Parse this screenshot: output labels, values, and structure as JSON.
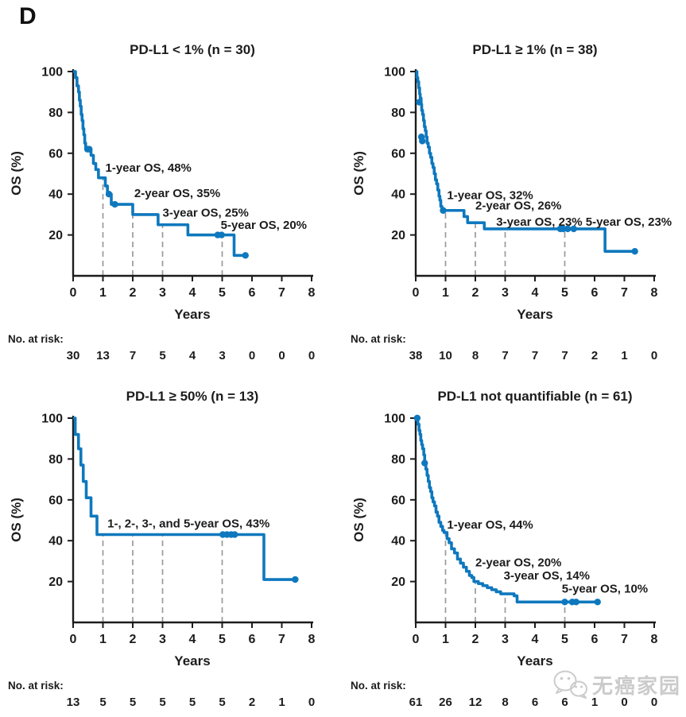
{
  "figure_label": "D",
  "risk_label": "No. at risk:",
  "watermark": {
    "text": "无癌家园",
    "icon": "wechat-chat-bubbles-icon"
  },
  "colors": {
    "curve": "#0E78BE",
    "axis": "#1c1c1c",
    "guide": "#9a9a9a",
    "text": "#1c1c1c",
    "watermark": "#c3c3c3"
  },
  "chart_data": [
    {
      "type": "line",
      "subtype": "kaplan-meier-step",
      "title": "PD-L1 < 1% (n = 30)",
      "xlabel": "Years",
      "ylabel": "OS (%)",
      "xlim": [
        0,
        8
      ],
      "xticks": [
        0,
        1,
        2,
        3,
        4,
        5,
        6,
        7,
        8
      ],
      "ylim": [
        0,
        100
      ],
      "yticks": [
        20,
        40,
        60,
        80,
        100
      ],
      "grid": false,
      "guides": [
        {
          "x": 1,
          "y": 48
        },
        {
          "x": 2,
          "y": 35
        },
        {
          "x": 3,
          "y": 25
        },
        {
          "x": 5,
          "y": 20
        }
      ],
      "steps": [
        [
          0,
          100
        ],
        [
          0.08,
          97
        ],
        [
          0.13,
          93
        ],
        [
          0.18,
          90
        ],
        [
          0.21,
          86
        ],
        [
          0.24,
          83
        ],
        [
          0.27,
          79
        ],
        [
          0.3,
          76
        ],
        [
          0.33,
          72
        ],
        [
          0.36,
          69
        ],
        [
          0.39,
          65
        ],
        [
          0.42,
          62
        ],
        [
          0.6,
          59
        ],
        [
          0.68,
          55
        ],
        [
          0.76,
          52
        ],
        [
          0.85,
          48
        ],
        [
          1.08,
          44
        ],
        [
          1.15,
          40
        ],
        [
          1.28,
          35
        ],
        [
          2.0,
          30
        ],
        [
          2.85,
          25
        ],
        [
          3.85,
          20
        ],
        [
          5.4,
          10
        ]
      ],
      "end_x": 5.8,
      "censors": [
        [
          0.48,
          62
        ],
        [
          0.54,
          62
        ],
        [
          1.2,
          40
        ],
        [
          1.4,
          35
        ],
        [
          4.85,
          20
        ],
        [
          4.98,
          20
        ],
        [
          5.78,
          10
        ]
      ],
      "annotations": [
        {
          "text": "1-year OS, 48%",
          "x": 1.08,
          "y": 51
        },
        {
          "text": "2-year OS, 35%",
          "x": 2.05,
          "y": 38.5
        },
        {
          "text": "3-year OS, 25%",
          "x": 3.0,
          "y": 29
        },
        {
          "text": "5-year OS, 20%",
          "x": 4.95,
          "y": 23
        }
      ],
      "risk": [
        30,
        13,
        7,
        5,
        4,
        3,
        0,
        0,
        0
      ]
    },
    {
      "type": "line",
      "subtype": "kaplan-meier-step",
      "title": "PD-L1 ≥ 1% (n = 38)",
      "xlabel": "Years",
      "ylabel": "OS (%)",
      "xlim": [
        0,
        8
      ],
      "xticks": [
        0,
        1,
        2,
        3,
        4,
        5,
        6,
        7,
        8
      ],
      "ylim": [
        0,
        100
      ],
      "yticks": [
        20,
        40,
        60,
        80,
        100
      ],
      "grid": false,
      "guides": [
        {
          "x": 1,
          "y": 32
        },
        {
          "x": 2,
          "y": 26
        },
        {
          "x": 3,
          "y": 23
        },
        {
          "x": 5,
          "y": 23
        }
      ],
      "steps": [
        [
          0,
          100
        ],
        [
          0.04,
          97
        ],
        [
          0.07,
          95
        ],
        [
          0.1,
          92
        ],
        [
          0.13,
          89
        ],
        [
          0.15,
          87
        ],
        [
          0.18,
          84
        ],
        [
          0.2,
          81
        ],
        [
          0.23,
          79
        ],
        [
          0.26,
          76
        ],
        [
          0.29,
          73
        ],
        [
          0.32,
          71
        ],
        [
          0.35,
          68
        ],
        [
          0.38,
          65
        ],
        [
          0.42,
          63
        ],
        [
          0.46,
          60
        ],
        [
          0.5,
          58
        ],
        [
          0.54,
          55
        ],
        [
          0.58,
          53
        ],
        [
          0.62,
          50
        ],
        [
          0.66,
          47
        ],
        [
          0.7,
          45
        ],
        [
          0.74,
          42
        ],
        [
          0.78,
          39
        ],
        [
          0.81,
          37
        ],
        [
          0.84,
          34
        ],
        [
          0.88,
          32
        ],
        [
          1.62,
          29
        ],
        [
          1.74,
          26
        ],
        [
          2.3,
          23
        ],
        [
          6.35,
          12
        ]
      ],
      "end_x": 7.35,
      "censors": [
        [
          0.12,
          85
        ],
        [
          0.19,
          68
        ],
        [
          0.22,
          66
        ],
        [
          0.92,
          32
        ],
        [
          4.85,
          23
        ],
        [
          4.95,
          23
        ],
        [
          5.1,
          23
        ],
        [
          5.3,
          23
        ],
        [
          7.35,
          12
        ]
      ],
      "annotations": [
        {
          "text": "1-year OS, 32%",
          "x": 1.05,
          "y": 37.5
        },
        {
          "text": "2-year OS, 26%",
          "x": 2.0,
          "y": 32.5
        },
        {
          "text": "3-year OS, 23%",
          "x": 2.7,
          "y": 24.5
        },
        {
          "text": "5-year OS, 23%",
          "x": 5.7,
          "y": 24.5
        }
      ],
      "risk": [
        38,
        10,
        8,
        7,
        7,
        7,
        2,
        1,
        0
      ]
    },
    {
      "type": "line",
      "subtype": "kaplan-meier-step",
      "title": "PD-L1 ≥ 50% (n = 13)",
      "xlabel": "Years",
      "ylabel": "OS (%)",
      "xlim": [
        0,
        8
      ],
      "xticks": [
        0,
        1,
        2,
        3,
        4,
        5,
        6,
        7,
        8
      ],
      "ylim": [
        0,
        100
      ],
      "yticks": [
        20,
        40,
        60,
        80,
        100
      ],
      "grid": false,
      "guides": [
        {
          "x": 1,
          "y": 43
        },
        {
          "x": 2,
          "y": 43
        },
        {
          "x": 3,
          "y": 43
        },
        {
          "x": 5,
          "y": 43
        }
      ],
      "steps": [
        [
          0,
          100
        ],
        [
          0.07,
          92
        ],
        [
          0.18,
          85
        ],
        [
          0.26,
          77
        ],
        [
          0.34,
          69
        ],
        [
          0.44,
          61
        ],
        [
          0.6,
          52
        ],
        [
          0.8,
          43
        ],
        [
          6.4,
          21
        ]
      ],
      "end_x": 7.45,
      "censors": [
        [
          5.02,
          43
        ],
        [
          5.16,
          43
        ],
        [
          5.3,
          43
        ],
        [
          5.42,
          43
        ],
        [
          7.45,
          21
        ]
      ],
      "annotations": [
        {
          "text": "1-, 2-, 3-, and 5-year OS, 43%",
          "x": 1.15,
          "y": 46.5
        }
      ],
      "risk": [
        13,
        5,
        5,
        5,
        5,
        5,
        2,
        1,
        0
      ]
    },
    {
      "type": "line",
      "subtype": "kaplan-meier-step",
      "title": "PD-L1 not quantifiable (n = 61)",
      "xlabel": "Years",
      "ylabel": "OS (%)",
      "xlim": [
        0,
        8
      ],
      "xticks": [
        0,
        1,
        2,
        3,
        4,
        5,
        6,
        7,
        8
      ],
      "ylim": [
        0,
        100
      ],
      "yticks": [
        20,
        40,
        60,
        80,
        100
      ],
      "grid": false,
      "guides": [
        {
          "x": 1,
          "y": 44
        },
        {
          "x": 2,
          "y": 20
        },
        {
          "x": 3,
          "y": 14
        },
        {
          "x": 5,
          "y": 10
        }
      ],
      "steps": [
        [
          0,
          100
        ],
        [
          0.07,
          97
        ],
        [
          0.11,
          94
        ],
        [
          0.14,
          92
        ],
        [
          0.17,
          89
        ],
        [
          0.2,
          87
        ],
        [
          0.23,
          85
        ],
        [
          0.27,
          82
        ],
        [
          0.3,
          78
        ],
        [
          0.34,
          75
        ],
        [
          0.38,
          72
        ],
        [
          0.42,
          69
        ],
        [
          0.46,
          66
        ],
        [
          0.5,
          64
        ],
        [
          0.54,
          61
        ],
        [
          0.58,
          59
        ],
        [
          0.63,
          57
        ],
        [
          0.68,
          54
        ],
        [
          0.73,
          52
        ],
        [
          0.78,
          49
        ],
        [
          0.84,
          47
        ],
        [
          0.9,
          45
        ],
        [
          0.95,
          44
        ],
        [
          1.05,
          41
        ],
        [
          1.12,
          39
        ],
        [
          1.2,
          36
        ],
        [
          1.3,
          34
        ],
        [
          1.4,
          31
        ],
        [
          1.5,
          29
        ],
        [
          1.6,
          27
        ],
        [
          1.7,
          25
        ],
        [
          1.8,
          23
        ],
        [
          1.88,
          22
        ],
        [
          1.95,
          20
        ],
        [
          2.1,
          19
        ],
        [
          2.25,
          18
        ],
        [
          2.4,
          17
        ],
        [
          2.55,
          16
        ],
        [
          2.7,
          15
        ],
        [
          2.85,
          14
        ],
        [
          3.3,
          13
        ],
        [
          3.4,
          10
        ]
      ],
      "end_x": 6.1,
      "censors": [
        [
          0.05,
          100
        ],
        [
          0.3,
          78
        ],
        [
          5.0,
          10
        ],
        [
          5.25,
          10
        ],
        [
          5.38,
          10
        ],
        [
          6.1,
          10
        ]
      ],
      "annotations": [
        {
          "text": "1-year OS, 44%",
          "x": 1.05,
          "y": 46
        },
        {
          "text": "2-year OS, 20%",
          "x": 2.0,
          "y": 27.5
        },
        {
          "text": "3-year OS, 14%",
          "x": 2.95,
          "y": 21
        },
        {
          "text": "5-year OS, 10%",
          "x": 4.9,
          "y": 14.5
        }
      ],
      "risk": [
        61,
        26,
        12,
        8,
        6,
        6,
        1,
        0,
        0
      ]
    }
  ]
}
